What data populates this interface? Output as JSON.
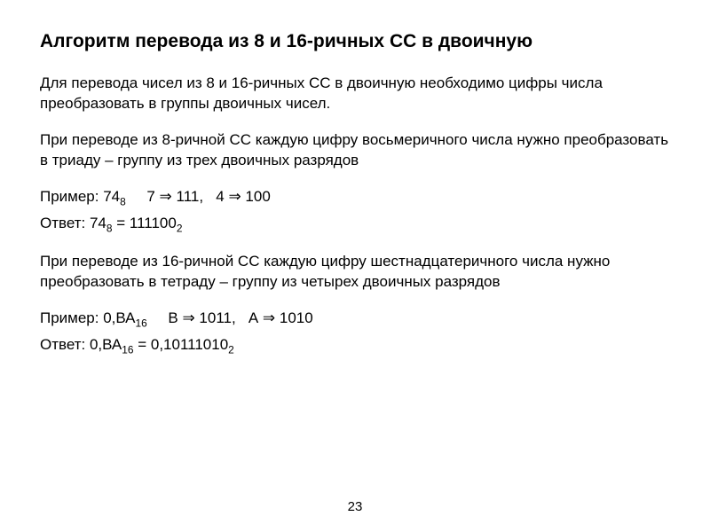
{
  "title": "Алгоритм перевода из 8 и 16-ричных СС в двоичную",
  "intro": "Для перевода чисел из 8 и 16-ричных СС в двоичную необходимо цифры числа преобразовать в группы двоичных чисел.",
  "octal_rule": "При переводе из 8-ричной СС каждую цифру восьмеричного числа нужно преобразовать в триаду – группу из трех двоичных разрядов",
  "example1": {
    "label": "Пример: 74",
    "sub1": "8",
    "mid1": "     7 ",
    "arrow": "⇒",
    "mid2": " 111,   4 ",
    "mid3": " 100"
  },
  "answer1": {
    "label": "Ответ: 74",
    "sub1": "8",
    "eq": " = 111100",
    "sub2": "2"
  },
  "hex_rule": "При переводе из 16-ричной СС каждую цифру шестнадцатеричного числа нужно преобразовать в тетраду – группу из четырех двоичных разрядов",
  "example2": {
    "label": "Пример: 0,ВА",
    "sub1": "16",
    "mid1": "     В ",
    "arrow": "⇒",
    "mid2": " 1011,   А ",
    "mid3": " 1010"
  },
  "answer2": {
    "label": "Ответ: 0,ВА",
    "sub1": "16",
    "eq": " = 0,10111010",
    "sub2": "2"
  },
  "page_number": "23",
  "colors": {
    "background": "#ffffff",
    "text": "#000000"
  },
  "fonts": {
    "title_size": 21,
    "body_size": 17,
    "title_weight": "bold"
  }
}
